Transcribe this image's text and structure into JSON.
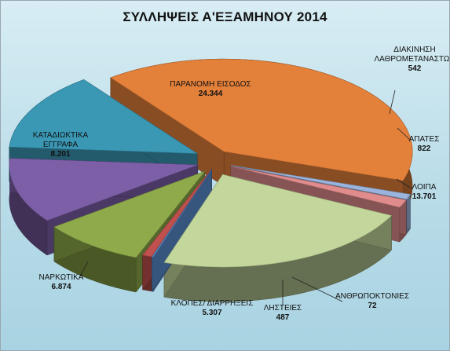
{
  "chart_data": {
    "type": "pie",
    "title": "ΣΥΛΛΗΨΕΙΣ Α'ΕΞΑΜΗΝΟΥ 2014",
    "legend": "none",
    "slices": [
      {
        "name": "ΠΑΡΑΝΟΜΗ ΕΙΣΟΔΟΣ",
        "lines": [
          "ΠΑΡΑΝΟΜΗ ΕΙΣΟΔΟΣ"
        ],
        "value": 24344,
        "display": "24.344",
        "color": "#e3803a"
      },
      {
        "name": "ΔΙΑΚΙΝΗΣΗ ΛΑΘΡΟΜΕΤΑΝΑΣΤΩΝ",
        "lines": [
          "ΔΙΑΚΙΝΗΣΗ",
          "ΛΑΘΡΟΜΕΤΑΝΑΣΤΩΝ"
        ],
        "value": 542,
        "display": "542",
        "color": "#9bb4dd"
      },
      {
        "name": "ΑΠΑΤΕΣ",
        "lines": [
          "ΑΠΑΤΕΣ"
        ],
        "value": 822,
        "display": "822",
        "color": "#e08c8c"
      },
      {
        "name": "ΛΟΙΠΑ",
        "lines": [
          "ΛΟΙΠΑ"
        ],
        "value": 13701,
        "display": "13.701",
        "color": "#c3d69b"
      },
      {
        "name": "ΑΝΘΡΩΠΟΚΤΟΝΙΕΣ",
        "lines": [
          "ΑΝΘΡΩΠΟΚΤΟΝΙΕΣ"
        ],
        "value": 72,
        "display": "72",
        "color": "#5b8fd0"
      },
      {
        "name": "ΛΗΣΤΕΙΕΣ",
        "lines": [
          "ΛΗΣΤΕΙΕΣ"
        ],
        "value": 487,
        "display": "487",
        "color": "#c0504d"
      },
      {
        "name": "ΚΛΟΠΕΣ/ ΔΙΑΡΡΗΞΕΙΣ",
        "lines": [
          "ΚΛΟΠΕΣ/ ΔΙΑΡΡΗΞΕΙΣ"
        ],
        "value": 5307,
        "display": "5.307",
        "color": "#8eaa4a"
      },
      {
        "name": "ΝΑΡΚΩΤΙΚΑ",
        "lines": [
          "ΝΑΡΚΩΤΙΚΑ"
        ],
        "value": 6874,
        "display": "6.874",
        "color": "#7d5fa8"
      },
      {
        "name": "ΚΑΤΑΔΙΩΚΤΙΚΑ ΕΓΓΡΑΦΑ",
        "lines": [
          "ΚΑΤΑΔΙΩΚΤΙΚΑ",
          "ΕΓΓΡΑΦΑ"
        ],
        "value": 8201,
        "display": "8.201",
        "color": "#3a98b5"
      }
    ]
  }
}
